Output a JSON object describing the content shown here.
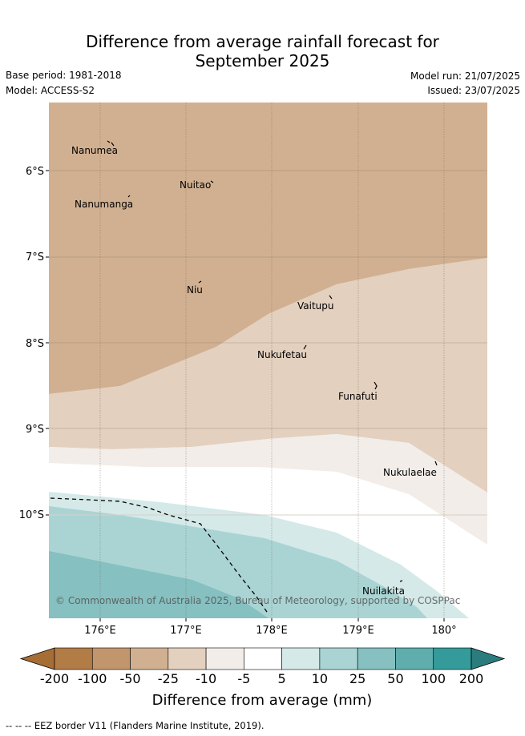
{
  "title": {
    "line1": "Difference from average rainfall forecast for",
    "line2": "September 2025"
  },
  "meta": {
    "base_period": "Base period: 1981-2018",
    "model": "Model: ACCESS-S2",
    "model_run": "Model run: 21/07/2025",
    "issued": "Issued: 23/07/2025"
  },
  "map": {
    "lat_labels": [
      "6°S",
      "7°S",
      "8°S",
      "9°S",
      "10°S"
    ],
    "lon_labels": [
      "176°E",
      "177°E",
      "178°E",
      "179°E",
      "180°"
    ],
    "places": [
      "Nanumea",
      "Nuitao",
      "Nanumanga",
      "Niu",
      "Vaitupu",
      "Nukufetau",
      "Funafuti",
      "Nukulaelae",
      "Nuilakita"
    ],
    "copyright": "© Commonwealth of Australia 2025, Bureau of Meteorology, supported by COSPPac"
  },
  "colorbar": {
    "ticks": [
      "-200",
      "-100",
      "-50",
      "-25",
      "-10",
      "-5",
      "5",
      "10",
      "25",
      "50",
      "100",
      "200"
    ],
    "label": "Difference from average (mm)",
    "colors": [
      "#a66d35",
      "#b27c47",
      "#c2966c",
      "#d1b091",
      "#e3d0bf",
      "#f2ede8",
      "#ffffff",
      "#d4e9e8",
      "#aad4d4",
      "#86c0c0",
      "#5fadad",
      "#359a9a",
      "#2b7c7c"
    ]
  },
  "footer": "-- -- -- EEZ border V11 (Flanders Marine Institute, 2019)."
}
